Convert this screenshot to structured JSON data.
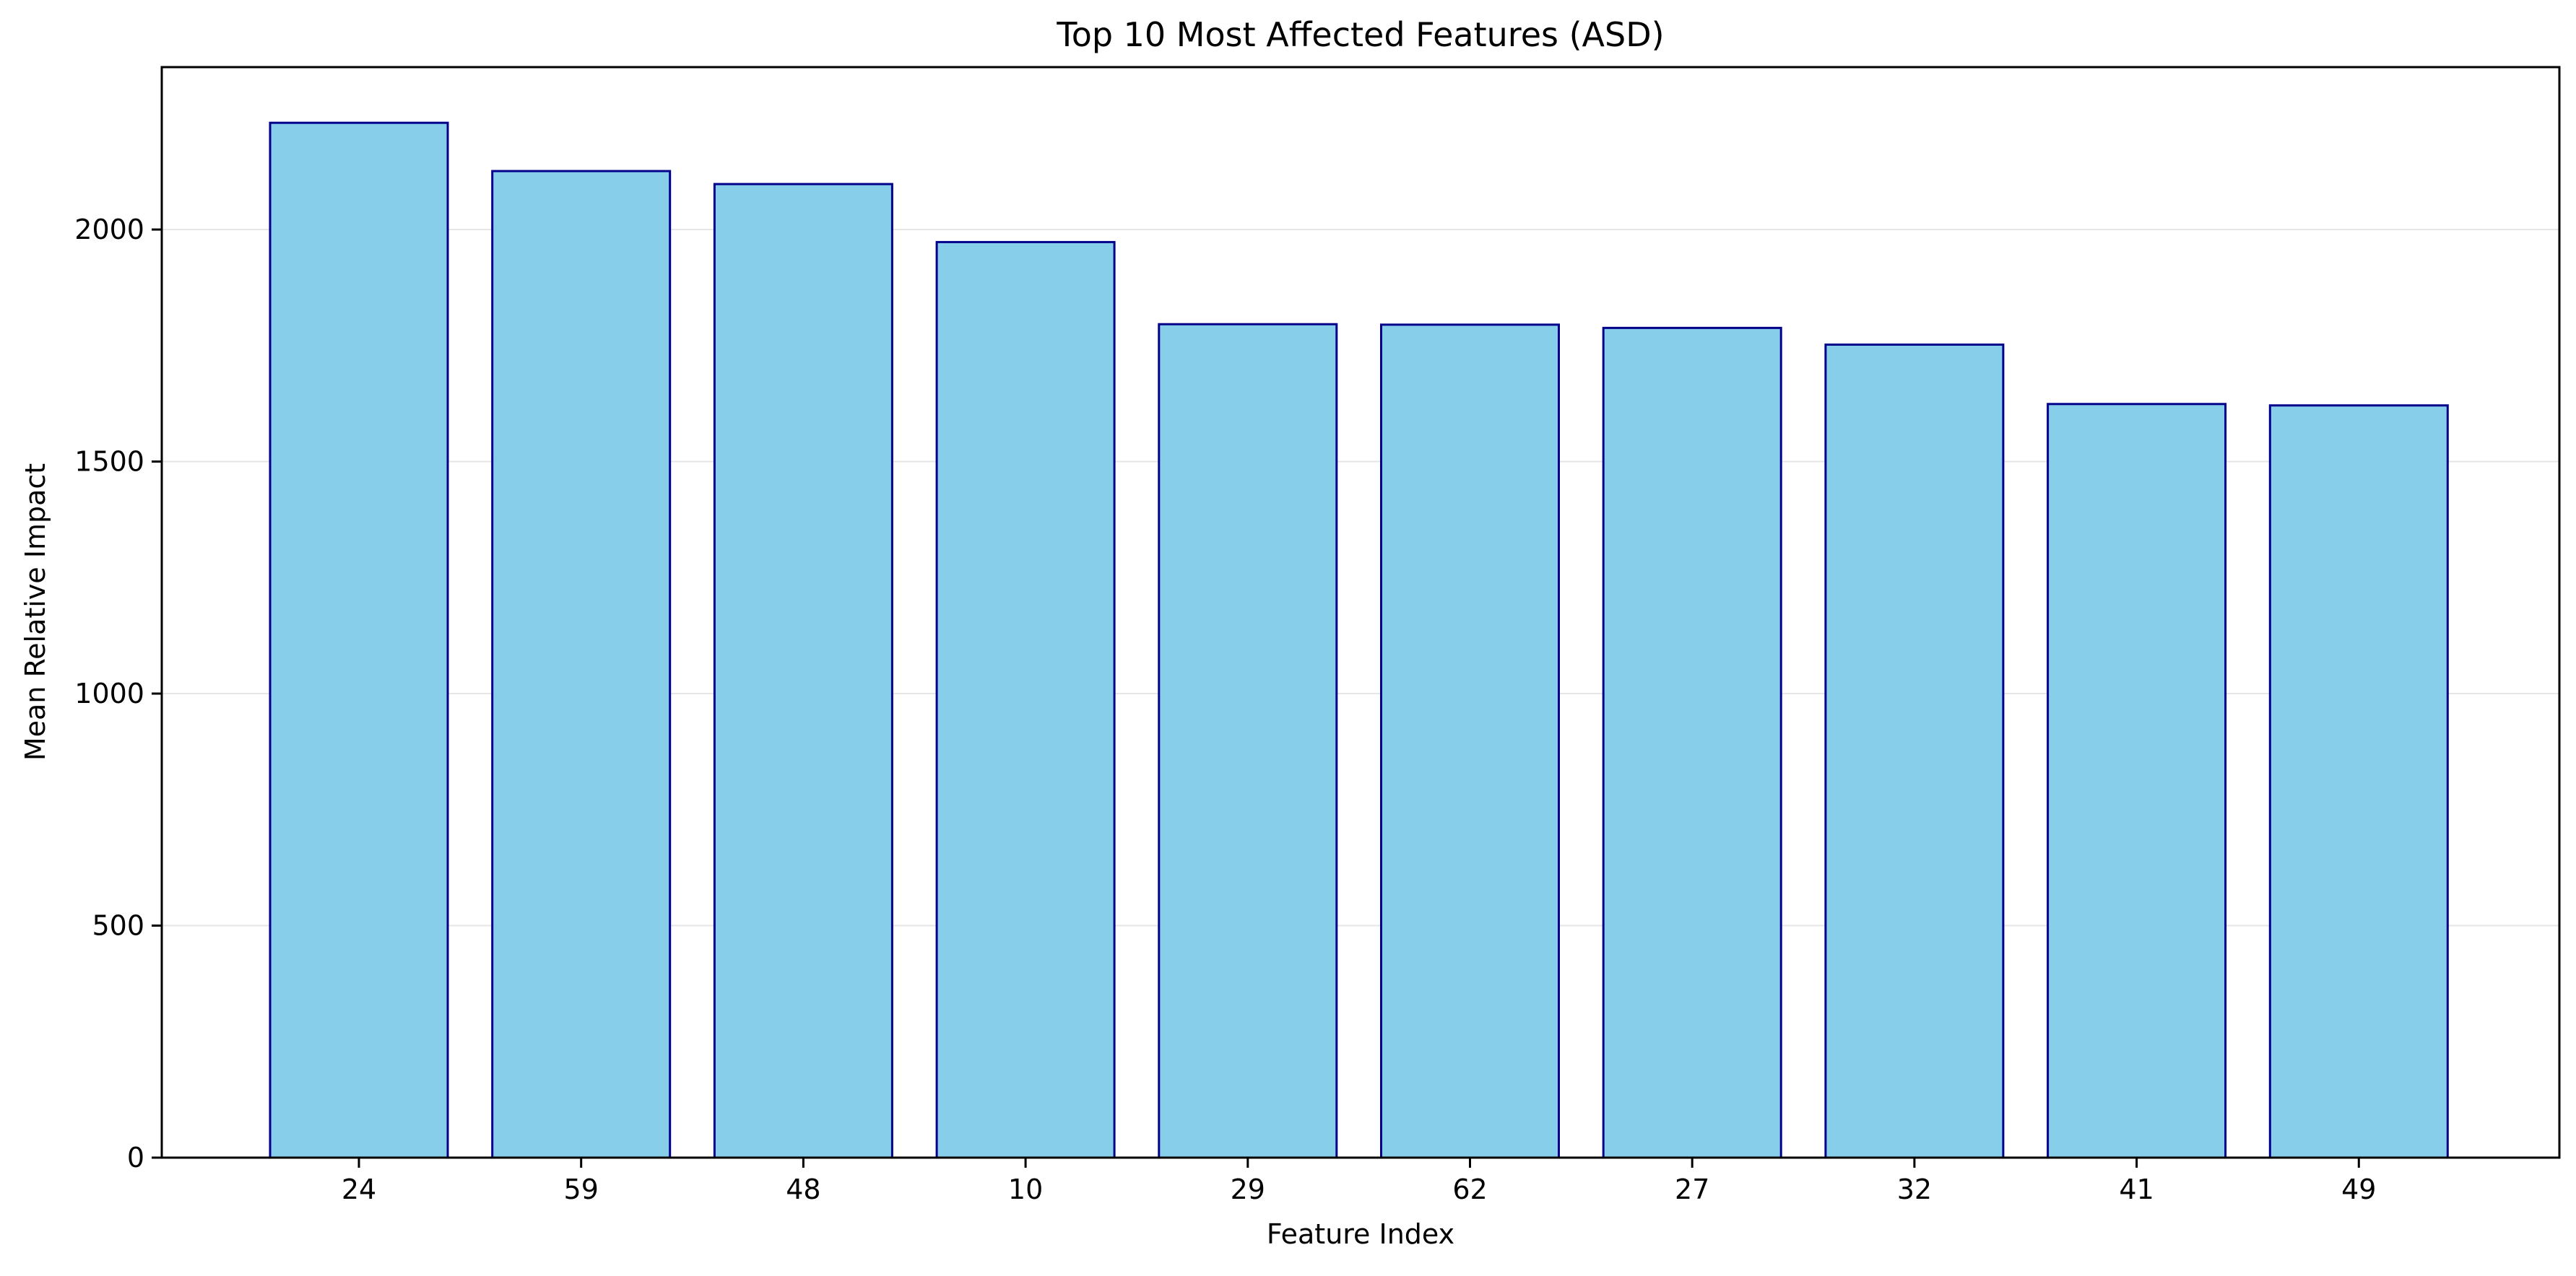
{
  "chart_data": {
    "type": "bar",
    "title": "Top 10 Most Affected Features (ASD)",
    "xlabel": "Feature Index",
    "ylabel": "Mean Relative Impact",
    "categories": [
      "24",
      "59",
      "48",
      "10",
      "29",
      "62",
      "27",
      "32",
      "41",
      "49"
    ],
    "values": [
      2230,
      2126,
      2098,
      1973,
      1796,
      1795,
      1788,
      1752,
      1624,
      1621
    ],
    "ylim": [
      0,
      2350
    ],
    "yticks": [
      0,
      500,
      1000,
      1500,
      2000
    ],
    "grid": "horizontal",
    "legend": "none",
    "colors": {
      "bar_fill": "#87CEEB",
      "bar_edge": "#00008B",
      "grid": "#e6e6e6",
      "axis": "#000000"
    }
  }
}
